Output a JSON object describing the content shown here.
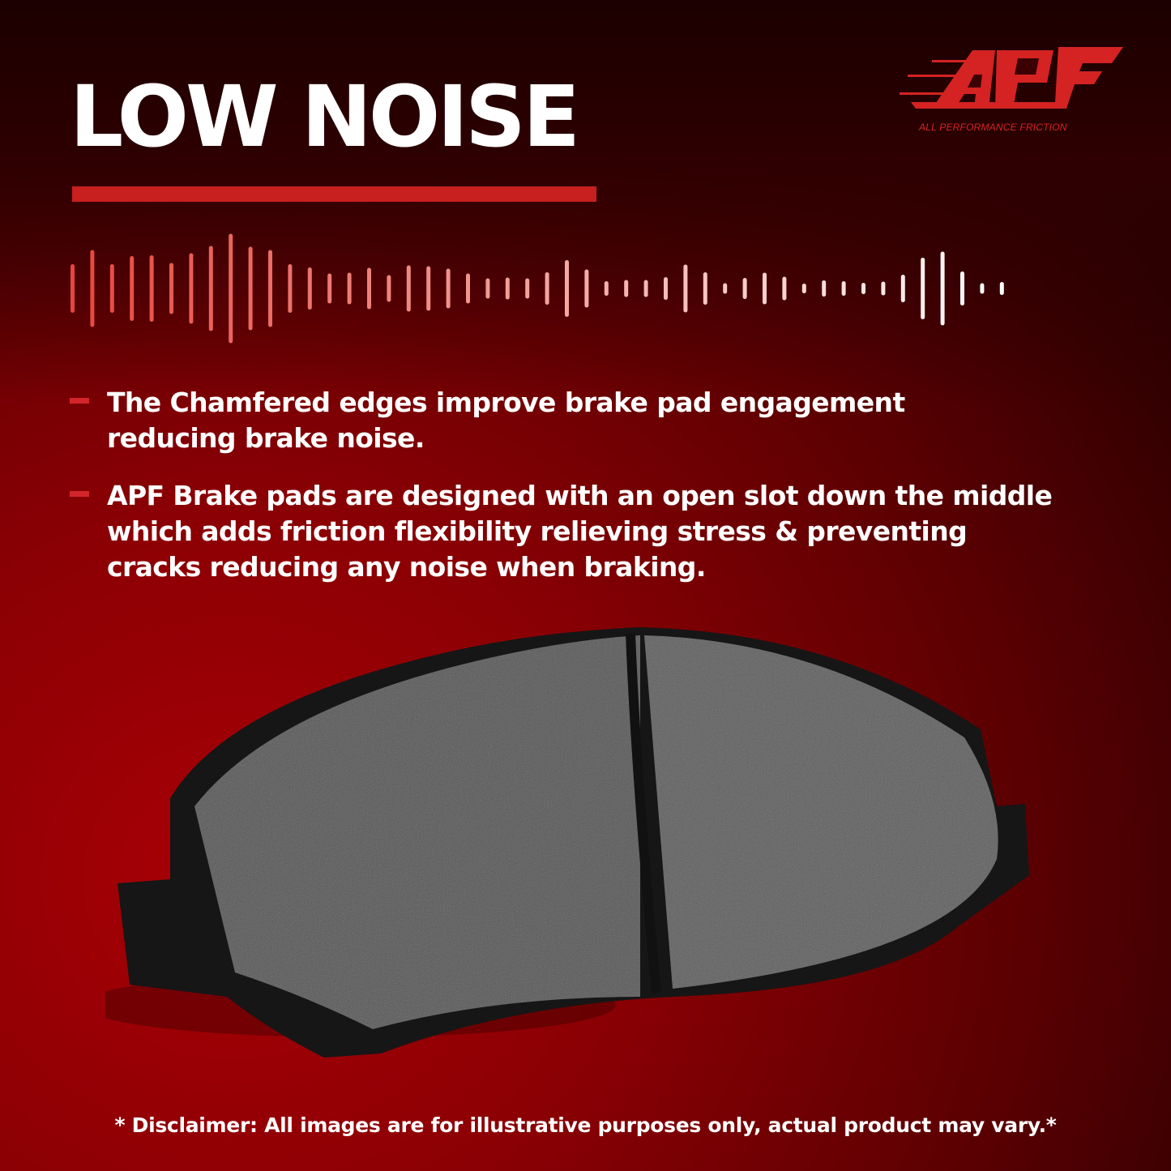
{
  "header": {
    "title": "LOW NOISE"
  },
  "brand": {
    "logo_text": "APF",
    "tagline": "ALL PERFORMANCE FRICTION",
    "color": "#d42322"
  },
  "colors": {
    "accent": "#c8201f",
    "background": "#8a0004"
  },
  "bullets": [
    {
      "text": "The Chamfered edges improve brake pad engagement\nreducing brake noise."
    },
    {
      "text": "APF Brake pads are designed with an open slot down the middle\nwhich adds friction flexibility relieving stress & preventing\n cracks reducing any noise when braking."
    }
  ],
  "disclaimer": "* Disclaimer: All images are for illustrative purposes only, actual product may vary.*"
}
